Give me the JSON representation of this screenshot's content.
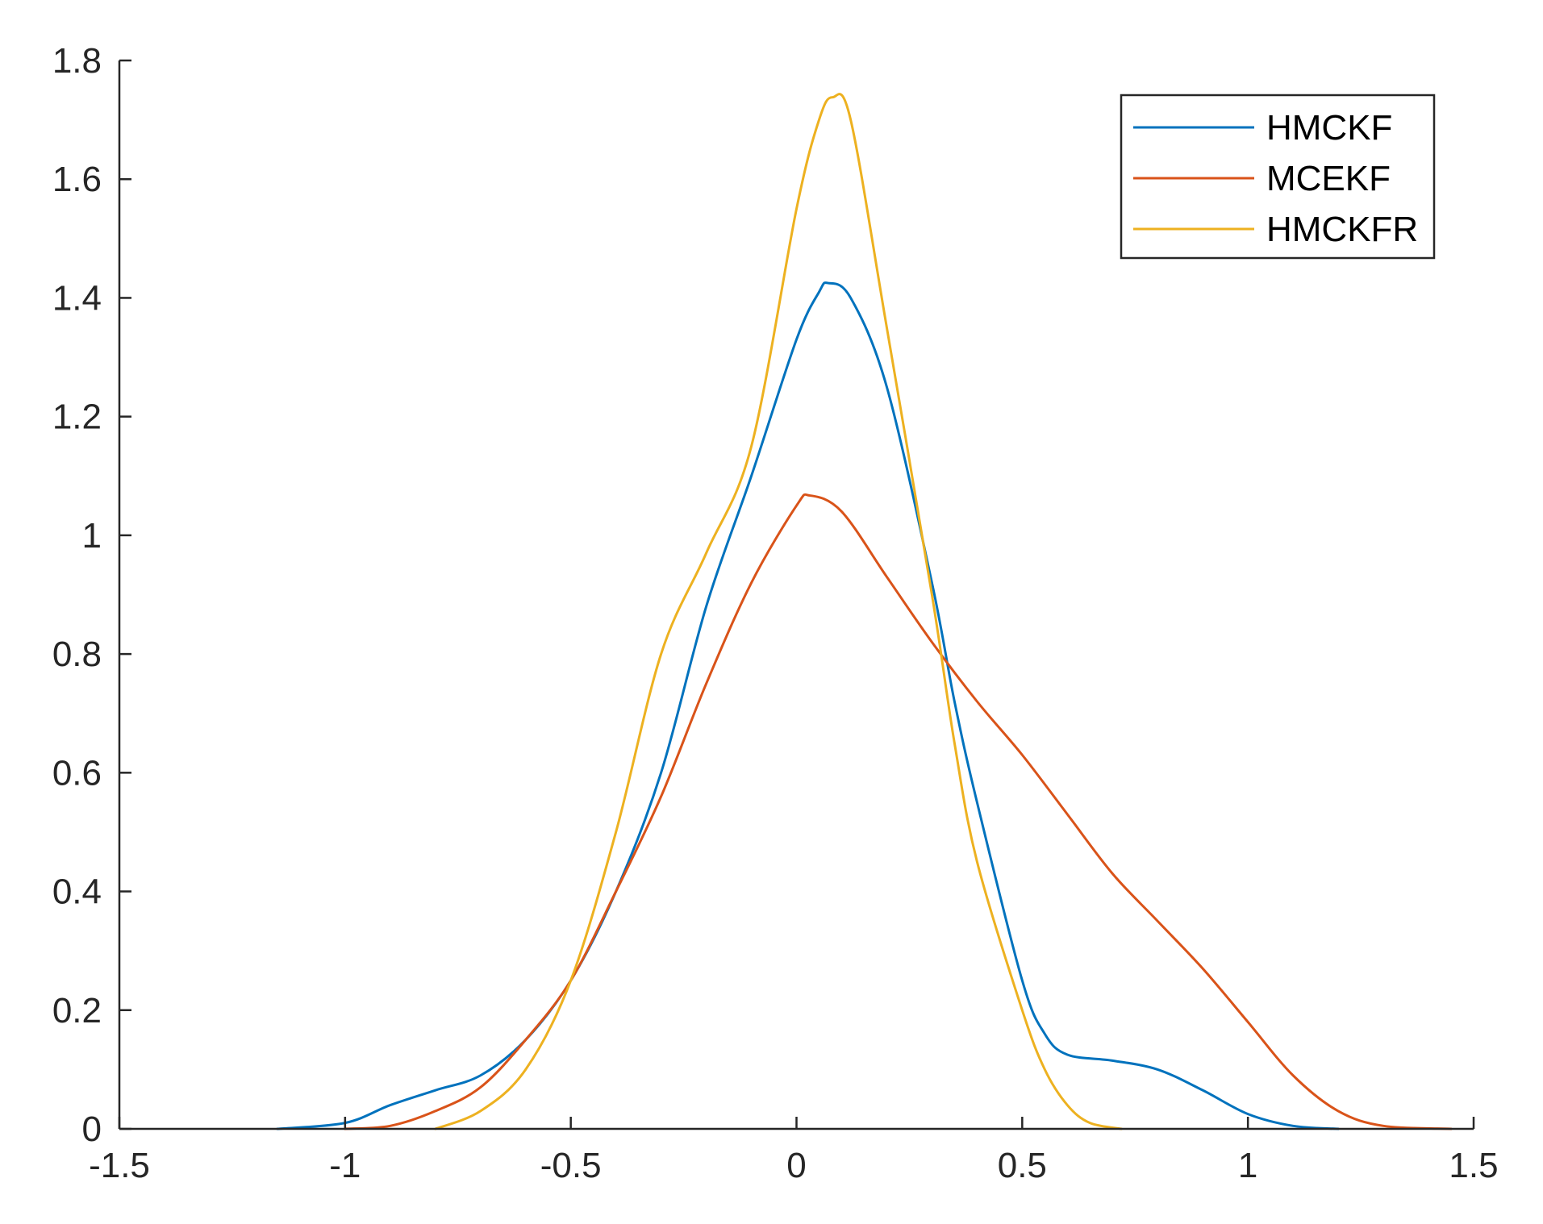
{
  "chart_data": {
    "type": "line",
    "title": "",
    "xlabel": "",
    "ylabel": "",
    "xlim": [
      -1.5,
      1.5
    ],
    "ylim": [
      0,
      1.8
    ],
    "xticks": [
      "-1.5",
      "-1",
      "-0.5",
      "0",
      "0.5",
      "1",
      "1.5"
    ],
    "yticks": [
      "0",
      "0.2",
      "0.4",
      "0.6",
      "0.8",
      "1",
      "1.2",
      "1.4",
      "1.6",
      "1.8"
    ],
    "grid": false,
    "legend": {
      "location": "top-right"
    },
    "series": [
      {
        "name": "HMCKF",
        "color": "#0072BD",
        "points": [
          [
            -1.15,
            0.0
          ],
          [
            -1.0,
            0.01
          ],
          [
            -0.9,
            0.04
          ],
          [
            -0.8,
            0.065
          ],
          [
            -0.7,
            0.09
          ],
          [
            -0.6,
            0.15
          ],
          [
            -0.5,
            0.25
          ],
          [
            -0.4,
            0.4
          ],
          [
            -0.3,
            0.6
          ],
          [
            -0.2,
            0.88
          ],
          [
            -0.1,
            1.1
          ],
          [
            0.0,
            1.33
          ],
          [
            0.05,
            1.41
          ],
          [
            0.07,
            1.425
          ],
          [
            0.12,
            1.4
          ],
          [
            0.2,
            1.25
          ],
          [
            0.3,
            0.92
          ],
          [
            0.35,
            0.72
          ],
          [
            0.4,
            0.55
          ],
          [
            0.5,
            0.25
          ],
          [
            0.55,
            0.16
          ],
          [
            0.6,
            0.125
          ],
          [
            0.7,
            0.115
          ],
          [
            0.8,
            0.1
          ],
          [
            0.9,
            0.065
          ],
          [
            1.0,
            0.025
          ],
          [
            1.1,
            0.005
          ],
          [
            1.2,
            0.0
          ]
        ]
      },
      {
        "name": "MCEKF",
        "color": "#D95319",
        "points": [
          [
            -1.0,
            0.0
          ],
          [
            -0.9,
            0.005
          ],
          [
            -0.8,
            0.03
          ],
          [
            -0.7,
            0.07
          ],
          [
            -0.6,
            0.15
          ],
          [
            -0.5,
            0.25
          ],
          [
            -0.4,
            0.4
          ],
          [
            -0.3,
            0.56
          ],
          [
            -0.2,
            0.75
          ],
          [
            -0.1,
            0.92
          ],
          [
            0.0,
            1.05
          ],
          [
            0.03,
            1.067
          ],
          [
            0.1,
            1.04
          ],
          [
            0.2,
            0.93
          ],
          [
            0.3,
            0.82
          ],
          [
            0.4,
            0.72
          ],
          [
            0.5,
            0.63
          ],
          [
            0.6,
            0.53
          ],
          [
            0.7,
            0.43
          ],
          [
            0.8,
            0.35
          ],
          [
            0.9,
            0.27
          ],
          [
            1.0,
            0.18
          ],
          [
            1.1,
            0.09
          ],
          [
            1.2,
            0.03
          ],
          [
            1.3,
            0.005
          ],
          [
            1.45,
            0.0
          ]
        ]
      },
      {
        "name": "HMCKFR",
        "color": "#EDB120",
        "points": [
          [
            -0.8,
            0.0
          ],
          [
            -0.7,
            0.03
          ],
          [
            -0.6,
            0.1
          ],
          [
            -0.5,
            0.25
          ],
          [
            -0.4,
            0.5
          ],
          [
            -0.3,
            0.8
          ],
          [
            -0.2,
            0.97
          ],
          [
            -0.1,
            1.15
          ],
          [
            0.0,
            1.55
          ],
          [
            0.05,
            1.7
          ],
          [
            0.08,
            1.738
          ],
          [
            0.12,
            1.7
          ],
          [
            0.2,
            1.35
          ],
          [
            0.3,
            0.9
          ],
          [
            0.35,
            0.65
          ],
          [
            0.4,
            0.45
          ],
          [
            0.5,
            0.2
          ],
          [
            0.55,
            0.1
          ],
          [
            0.6,
            0.04
          ],
          [
            0.65,
            0.01
          ],
          [
            0.72,
            0.0
          ]
        ]
      }
    ]
  }
}
